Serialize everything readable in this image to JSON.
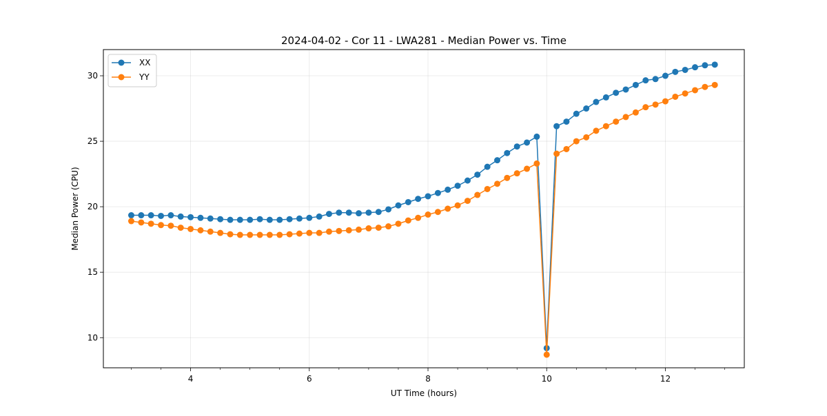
{
  "chart_data": {
    "type": "line",
    "title": "2024-04-02 - Cor 11 - LWA281 - Median Power vs. Time",
    "xlabel": "UT Time (hours)",
    "ylabel": "Median Power (CPU)",
    "xlim": [
      2.53,
      13.33
    ],
    "ylim": [
      7.7,
      32.0
    ],
    "xticks": [
      4,
      6,
      8,
      10,
      12
    ],
    "xtick_labels": [
      "4",
      "6",
      "8",
      "10",
      "12"
    ],
    "xminor_step": 0.5,
    "yticks": [
      10,
      15,
      20,
      25,
      30
    ],
    "ytick_labels": [
      "10",
      "15",
      "20",
      "25",
      "30"
    ],
    "grid": true,
    "legend_position": "top-left",
    "x": [
      3.0,
      3.167,
      3.333,
      3.5,
      3.667,
      3.833,
      4.0,
      4.167,
      4.333,
      4.5,
      4.667,
      4.833,
      5.0,
      5.167,
      5.333,
      5.5,
      5.667,
      5.833,
      6.0,
      6.167,
      6.333,
      6.5,
      6.667,
      6.833,
      7.0,
      7.167,
      7.333,
      7.5,
      7.667,
      7.833,
      8.0,
      8.167,
      8.333,
      8.5,
      8.667,
      8.833,
      9.0,
      9.167,
      9.333,
      9.5,
      9.667,
      9.833,
      10.0,
      10.167,
      10.333,
      10.5,
      10.667,
      10.833,
      11.0,
      11.167,
      11.333,
      11.5,
      11.667,
      11.833,
      12.0,
      12.167,
      12.333,
      12.5,
      12.667,
      12.833
    ],
    "series": [
      {
        "name": "XX",
        "color": "#1f77b4",
        "values": [
          19.35,
          19.35,
          19.35,
          19.3,
          19.35,
          19.25,
          19.2,
          19.15,
          19.1,
          19.05,
          19.0,
          19.0,
          19.0,
          19.05,
          19.0,
          19.0,
          19.05,
          19.1,
          19.15,
          19.25,
          19.45,
          19.55,
          19.55,
          19.5,
          19.55,
          19.6,
          19.8,
          20.1,
          20.35,
          20.6,
          20.8,
          21.05,
          21.3,
          21.6,
          22.0,
          22.45,
          23.05,
          23.55,
          24.1,
          24.6,
          24.9,
          25.35,
          9.2,
          26.15,
          26.5,
          27.1,
          27.5,
          28.0,
          28.35,
          28.7,
          28.95,
          29.3,
          29.65,
          29.75,
          30.0,
          30.3,
          30.45,
          30.65,
          30.8,
          30.85
        ]
      },
      {
        "name": "YY",
        "color": "#ff7f0e",
        "values": [
          18.9,
          18.8,
          18.7,
          18.6,
          18.55,
          18.4,
          18.3,
          18.2,
          18.1,
          18.0,
          17.9,
          17.85,
          17.85,
          17.85,
          17.85,
          17.85,
          17.9,
          17.95,
          18.0,
          18.0,
          18.1,
          18.15,
          18.2,
          18.25,
          18.35,
          18.4,
          18.5,
          18.7,
          18.95,
          19.15,
          19.4,
          19.6,
          19.85,
          20.1,
          20.45,
          20.9,
          21.35,
          21.75,
          22.2,
          22.55,
          22.9,
          23.3,
          8.7,
          24.05,
          24.4,
          25.0,
          25.3,
          25.8,
          26.15,
          26.5,
          26.85,
          27.2,
          27.6,
          27.8,
          28.05,
          28.4,
          28.65,
          28.9,
          29.15,
          29.3
        ]
      }
    ]
  }
}
